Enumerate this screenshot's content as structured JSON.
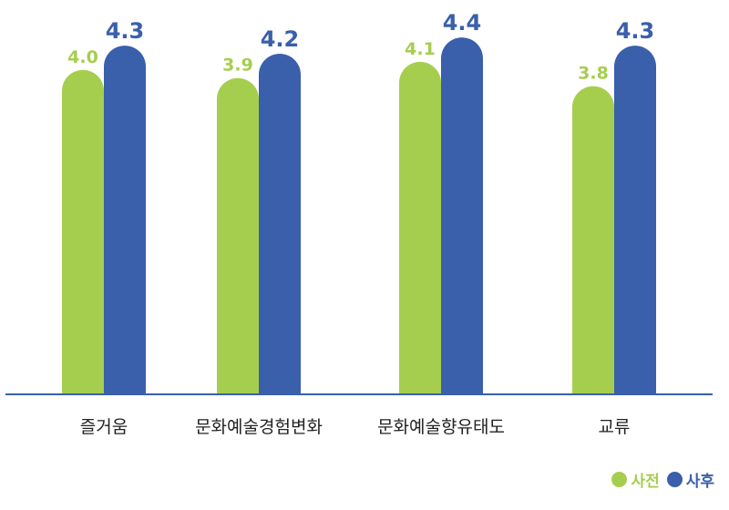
{
  "chart_data": {
    "type": "bar",
    "categories": [
      "즐거움",
      "문화예술경험변화",
      "문화예술향유태도",
      "교류"
    ],
    "series": [
      {
        "name": "사전",
        "values": [
          4.0,
          3.9,
          4.1,
          3.8
        ],
        "value_labels": [
          "4.0",
          "3.9",
          "4.1",
          "3.8"
        ],
        "color": "#a6ce4e"
      },
      {
        "name": "사후",
        "values": [
          4.3,
          4.2,
          4.4,
          4.3
        ],
        "value_labels": [
          "4.3",
          "4.2",
          "4.4",
          "4.3"
        ],
        "color": "#3a5fab"
      }
    ],
    "ylim": [
      0,
      4.75
    ],
    "grid": false,
    "legend_position": "bottom-right",
    "axis_color": "#3a5fab"
  }
}
